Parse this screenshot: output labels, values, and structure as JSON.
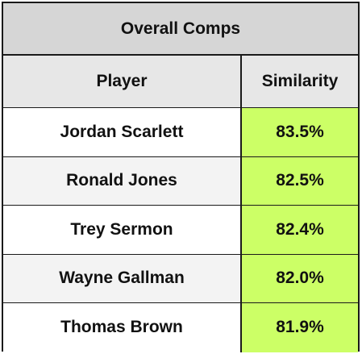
{
  "table": {
    "title": "Overall Comps",
    "headers": {
      "player": "Player",
      "similarity": "Similarity"
    },
    "rows": [
      {
        "player": "Jordan Scarlett",
        "similarity": "83.5%"
      },
      {
        "player": "Ronald Jones",
        "similarity": "82.5%"
      },
      {
        "player": "Trey Sermon",
        "similarity": "82.4%"
      },
      {
        "player": "Wayne Gallman",
        "similarity": "82.0%"
      },
      {
        "player": "Thomas Brown",
        "similarity": "81.9%"
      }
    ],
    "colors": {
      "highlight": "#ccff66",
      "title_bg": "#d6d6d6",
      "header_bg": "#e7e7e7",
      "alt_row_bg": "#f3f3f3"
    }
  }
}
